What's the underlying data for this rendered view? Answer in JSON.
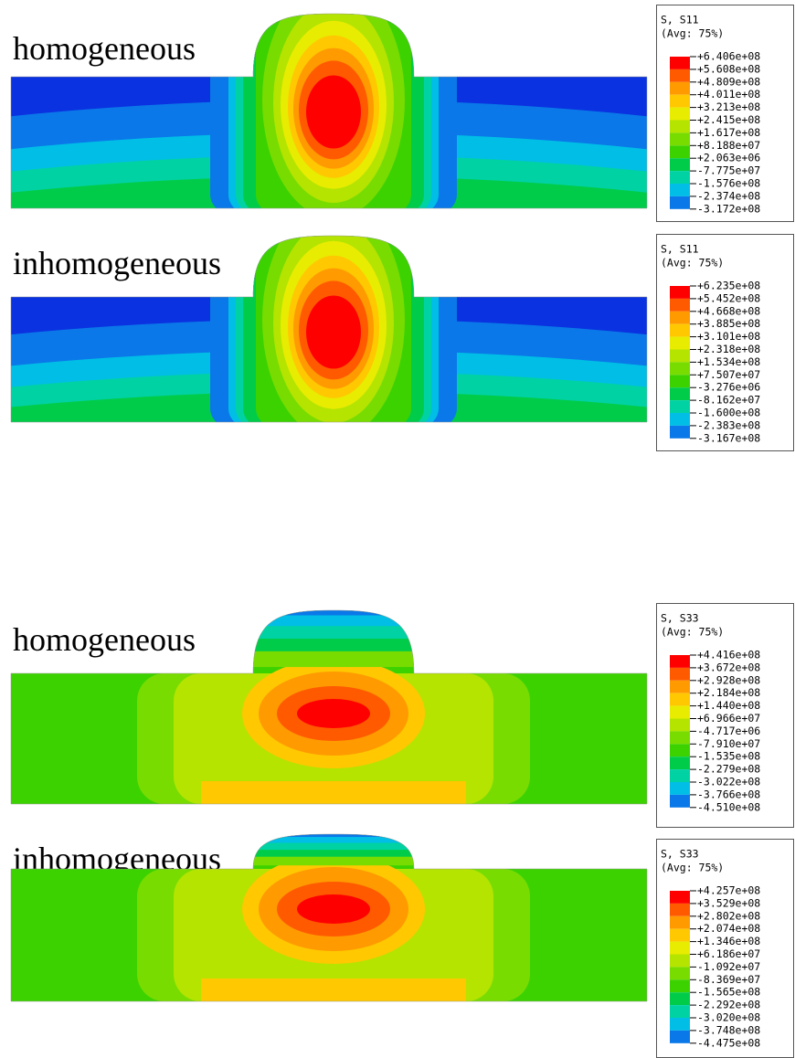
{
  "panels": [
    {
      "label": "homogeneous",
      "legend": {
        "title": "S, S11",
        "subtitle": "(Avg: 75%)",
        "values": [
          "+6.406e+08",
          "+5.608e+08",
          "+4.809e+08",
          "+4.011e+08",
          "+3.213e+08",
          "+2.415e+08",
          "+1.617e+08",
          "+8.188e+07",
          "+2.063e+06",
          "-7.775e+07",
          "-1.576e+08",
          "-2.374e+08",
          "-3.172e+08"
        ]
      }
    },
    {
      "label": "inhomogeneous",
      "legend": {
        "title": "S, S11",
        "subtitle": "(Avg: 75%)",
        "values": [
          "+6.235e+08",
          "+5.452e+08",
          "+4.668e+08",
          "+3.885e+08",
          "+3.101e+08",
          "+2.318e+08",
          "+1.534e+08",
          "+7.507e+07",
          "-3.276e+06",
          "-8.162e+07",
          "-1.600e+08",
          "-2.383e+08",
          "-3.167e+08"
        ]
      }
    },
    {
      "label": "homogeneous",
      "legend": {
        "title": "S, S33",
        "subtitle": "(Avg: 75%)",
        "values": [
          "+4.416e+08",
          "+3.672e+08",
          "+2.928e+08",
          "+2.184e+08",
          "+1.440e+08",
          "+6.966e+07",
          "-4.717e+06",
          "-7.910e+07",
          "-1.535e+08",
          "-2.279e+08",
          "-3.022e+08",
          "-3.766e+08",
          "-4.510e+08"
        ]
      }
    },
    {
      "label": "inhomogeneous",
      "legend": {
        "title": "S, S33",
        "subtitle": "(Avg: 75%)",
        "values": [
          "+4.257e+08",
          "+3.529e+08",
          "+2.802e+08",
          "+2.074e+08",
          "+1.346e+08",
          "+6.186e+07",
          "-1.092e+07",
          "-8.369e+07",
          "-1.565e+08",
          "-2.292e+08",
          "-3.020e+08",
          "-3.748e+08",
          "-4.475e+08"
        ]
      }
    }
  ]
}
